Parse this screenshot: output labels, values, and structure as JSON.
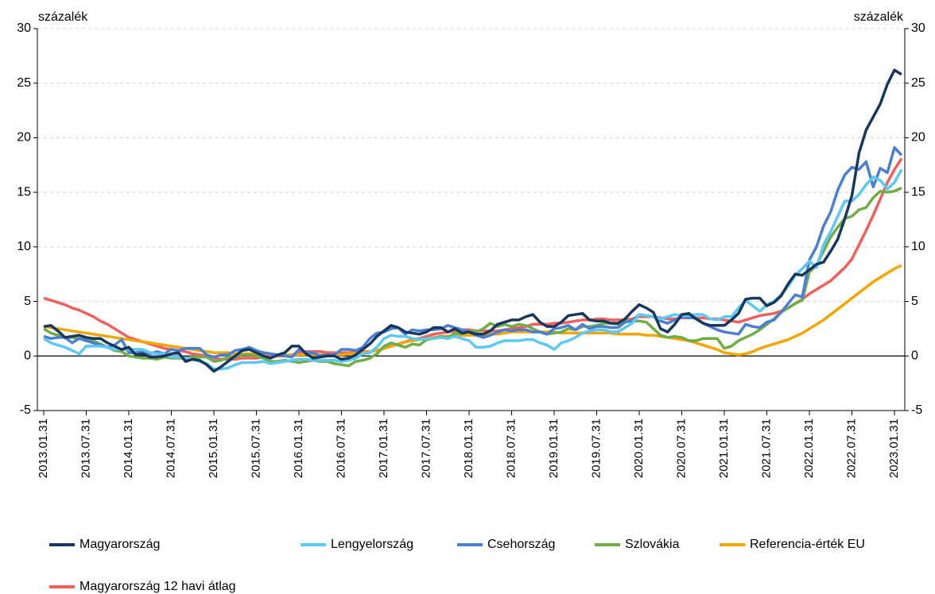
{
  "chart_data": {
    "type": "line",
    "y_label": "százalék",
    "y2_label": "százalék",
    "categories": [
      "2013.01.31",
      null,
      null,
      null,
      null,
      null,
      "2013.07.31",
      null,
      null,
      null,
      null,
      null,
      "2014.01.31",
      null,
      null,
      null,
      null,
      null,
      "2014.07.31",
      null,
      null,
      null,
      null,
      null,
      "2015.01.31",
      null,
      null,
      null,
      null,
      null,
      "2015.07.31",
      null,
      null,
      null,
      null,
      null,
      "2016.01.31",
      null,
      null,
      null,
      null,
      null,
      "2016.07.31",
      null,
      null,
      null,
      null,
      null,
      "2017.01.31",
      null,
      null,
      null,
      null,
      null,
      "2017.07.31",
      null,
      null,
      null,
      null,
      null,
      "2018.01.31",
      null,
      null,
      null,
      null,
      null,
      "2018.07.31",
      null,
      null,
      null,
      null,
      null,
      "2019.01.31",
      null,
      null,
      null,
      null,
      null,
      "2019.07.31",
      null,
      null,
      null,
      null,
      null,
      "2020.01.31",
      null,
      null,
      null,
      null,
      null,
      "2020.07.31",
      null,
      null,
      null,
      null,
      null,
      "2021.01.31",
      null,
      null,
      null,
      null,
      null,
      "2021.07.31",
      null,
      null,
      null,
      null,
      null,
      "2022.01.31",
      null,
      null,
      null,
      null,
      null,
      "2022.07.31",
      null,
      null,
      null,
      null,
      null,
      "2023.01.31",
      null
    ],
    "series": [
      {
        "name": "Magyarország",
        "color": "#17375e",
        "values": [
          2.7,
          2.8,
          2.3,
          1.7,
          1.8,
          1.9,
          1.7,
          1.6,
          1.6,
          1.2,
          0.9,
          0.6,
          0.8,
          0.1,
          0.2,
          -0.1,
          -0.1,
          0.0,
          0.2,
          0.3,
          -0.5,
          -0.3,
          -0.4,
          -0.8,
          -1.4,
          -1.0,
          -0.5,
          0.0,
          0.5,
          0.6,
          0.3,
          0.0,
          -0.2,
          0.1,
          0.3,
          0.9,
          0.9,
          0.2,
          -0.2,
          -0.1,
          0.0,
          0.0,
          -0.3,
          -0.2,
          0.1,
          0.6,
          1.1,
          1.8,
          2.3,
          2.8,
          2.6,
          2.2,
          2.1,
          2.0,
          2.2,
          2.6,
          2.6,
          2.2,
          2.5,
          2.1,
          2.2,
          2.0,
          2.0,
          2.3,
          2.9,
          3.1,
          3.3,
          3.3,
          3.6,
          3.8,
          3.1,
          2.7,
          2.7,
          3.1,
          3.7,
          3.8,
          3.9,
          3.3,
          3.2,
          3.2,
          3.0,
          3.0,
          3.4,
          4.1,
          4.7,
          4.4,
          4.0,
          2.5,
          2.2,
          2.9,
          3.8,
          3.9,
          3.4,
          3.0,
          2.8,
          2.8,
          2.8,
          3.3,
          3.9,
          5.2,
          5.3,
          5.3,
          4.6,
          4.9,
          5.5,
          6.6,
          7.5,
          7.4,
          7.9,
          8.4,
          8.6,
          9.6,
          10.7,
          12.6,
          14.7,
          18.6,
          20.7,
          21.9,
          23.1,
          24.9,
          26.2,
          25.8
        ]
      },
      {
        "name": "Lengyelország",
        "color": "#5bc8f5",
        "values": [
          1.6,
          1.2,
          1.0,
          0.8,
          0.5,
          0.2,
          0.9,
          0.9,
          0.9,
          0.8,
          0.6,
          0.6,
          0.6,
          0.6,
          0.6,
          0.3,
          0.2,
          0.2,
          -0.1,
          -0.1,
          -0.2,
          -0.3,
          -0.5,
          -0.7,
          -1.2,
          -1.2,
          -1.1,
          -0.8,
          -0.6,
          -0.6,
          -0.6,
          -0.5,
          -0.7,
          -0.6,
          -0.5,
          -0.4,
          -0.3,
          -0.3,
          -0.4,
          -0.4,
          -0.4,
          -0.4,
          -0.5,
          -0.4,
          -0.2,
          0.2,
          0.3,
          0.8,
          1.6,
          1.9,
          1.8,
          1.8,
          1.6,
          1.5,
          1.6,
          1.6,
          1.7,
          1.6,
          1.8,
          1.6,
          1.4,
          0.8,
          0.8,
          0.9,
          1.2,
          1.4,
          1.4,
          1.4,
          1.5,
          1.5,
          1.2,
          1.0,
          0.6,
          1.2,
          1.4,
          1.7,
          2.1,
          2.3,
          2.4,
          2.4,
          2.2,
          2.2,
          2.6,
          3.0,
          3.8,
          3.7,
          3.6,
          3.4,
          3.6,
          3.8,
          3.7,
          3.7,
          3.8,
          3.8,
          3.4,
          3.3,
          3.6,
          3.6,
          4.4,
          5.1,
          4.6,
          4.1,
          4.7,
          5.0,
          5.6,
          6.4,
          7.4,
          8.0,
          8.7,
          8.1,
          10.2,
          11.4,
          12.8,
          14.2,
          14.2,
          14.8,
          15.7,
          16.4,
          16.1,
          15.3,
          15.9,
          17.1
        ]
      },
      {
        "name": "Csehország",
        "color": "#4a7fd4",
        "values": [
          1.8,
          1.6,
          1.7,
          1.7,
          1.2,
          1.6,
          1.4,
          1.2,
          1.0,
          0.8,
          1.0,
          1.5,
          0.3,
          0.3,
          0.4,
          0.2,
          0.4,
          0.2,
          0.6,
          0.5,
          0.7,
          0.7,
          0.7,
          0.1,
          -0.1,
          0.1,
          0.1,
          0.5,
          0.6,
          0.8,
          0.5,
          0.3,
          0.2,
          0.1,
          0.0,
          -0.1,
          0.6,
          0.3,
          0.3,
          0.0,
          0.1,
          0.1,
          0.6,
          0.6,
          0.5,
          0.8,
          1.6,
          2.1,
          2.2,
          2.5,
          2.6,
          2.0,
          2.4,
          2.3,
          2.4,
          2.4,
          2.5,
          2.8,
          2.6,
          2.4,
          2.2,
          1.9,
          1.7,
          1.9,
          2.2,
          2.4,
          2.3,
          2.4,
          2.4,
          2.2,
          2.2,
          2.0,
          2.5,
          2.6,
          2.8,
          2.4,
          2.9,
          2.5,
          2.7,
          2.7,
          2.6,
          2.6,
          3.1,
          3.2,
          3.8,
          3.7,
          3.6,
          3.2,
          3.0,
          3.3,
          3.6,
          3.5,
          3.5,
          3.0,
          2.7,
          2.4,
          2.2,
          2.1,
          2.0,
          2.9,
          2.7,
          2.6,
          3.1,
          3.3,
          4.0,
          4.8,
          5.6,
          5.4,
          8.8,
          10.0,
          11.9,
          13.2,
          15.2,
          16.6,
          17.3,
          17.1,
          17.8,
          15.5,
          17.2,
          16.8,
          19.1,
          18.4
        ]
      },
      {
        "name": "Szlovákia",
        "color": "#70ad47",
        "values": [
          2.5,
          2.1,
          1.9,
          1.7,
          1.7,
          1.6,
          1.5,
          1.4,
          1.1,
          0.8,
          0.5,
          0.4,
          0.0,
          -0.1,
          -0.2,
          -0.2,
          -0.3,
          -0.1,
          -0.2,
          -0.2,
          -0.2,
          -0.1,
          -0.1,
          -0.1,
          -0.5,
          -0.4,
          -0.1,
          -0.1,
          0.1,
          0.1,
          0.0,
          -0.2,
          -0.5,
          -0.5,
          -0.4,
          -0.5,
          -0.6,
          -0.5,
          -0.4,
          -0.5,
          -0.5,
          -0.7,
          -0.8,
          -0.9,
          -0.5,
          -0.4,
          -0.2,
          0.2,
          0.9,
          1.2,
          1.0,
          0.8,
          1.1,
          1.0,
          1.5,
          1.6,
          1.8,
          1.7,
          2.1,
          2.0,
          2.3,
          2.2,
          2.5,
          3.0,
          2.7,
          2.9,
          2.7,
          2.9,
          2.8,
          2.5,
          2.2,
          2.0,
          2.1,
          2.2,
          2.5,
          2.4,
          2.7,
          2.7,
          2.8,
          3.0,
          3.0,
          2.9,
          3.2,
          3.2,
          3.2,
          3.1,
          2.5,
          1.9,
          1.7,
          1.8,
          1.7,
          1.4,
          1.4,
          1.6,
          1.6,
          1.6,
          0.7,
          0.9,
          1.4,
          1.7,
          2.0,
          2.4,
          2.9,
          3.4,
          4.0,
          4.4,
          4.8,
          5.1,
          7.7,
          8.3,
          9.6,
          10.9,
          11.8,
          12.6,
          12.8,
          13.4,
          13.6,
          14.5,
          15.1,
          15.0,
          15.1,
          15.4
        ]
      },
      {
        "name": "Referencia-érték EU",
        "color": "#f5a500",
        "values": [
          2.7,
          2.6,
          2.5,
          2.4,
          2.3,
          2.2,
          2.1,
          2.0,
          1.9,
          1.8,
          1.7,
          1.6,
          1.5,
          1.4,
          1.3,
          1.2,
          1.1,
          1.0,
          0.9,
          0.8,
          0.7,
          0.6,
          0.5,
          0.4,
          0.3,
          0.3,
          0.3,
          0.2,
          0.2,
          0.2,
          0.2,
          0.2,
          0.2,
          0.1,
          0.1,
          0.1,
          0.1,
          0.1,
          0.1,
          0.1,
          0.1,
          0.1,
          0.1,
          0.2,
          0.2,
          0.3,
          0.4,
          0.5,
          0.7,
          0.9,
          1.1,
          1.3,
          1.4,
          1.5,
          1.6,
          1.7,
          1.8,
          1.8,
          1.9,
          1.9,
          1.9,
          1.9,
          1.9,
          2.0,
          2.0,
          2.1,
          2.2,
          2.2,
          2.2,
          2.2,
          2.2,
          2.2,
          2.2,
          2.1,
          2.1,
          2.1,
          2.1,
          2.1,
          2.1,
          2.1,
          2.1,
          2.0,
          2.0,
          2.0,
          2.0,
          1.9,
          1.9,
          1.8,
          1.7,
          1.6,
          1.5,
          1.4,
          1.2,
          1.0,
          0.8,
          0.6,
          0.3,
          0.2,
          0.1,
          0.2,
          0.4,
          0.7,
          0.9,
          1.1,
          1.3,
          1.5,
          1.8,
          2.1,
          2.5,
          2.9,
          3.3,
          3.8,
          4.3,
          4.8,
          5.3,
          5.8,
          6.3,
          6.8,
          7.2,
          7.6,
          8.0,
          8.3
        ]
      },
      {
        "name": "Magyarország 12 havi átlag",
        "color": "#f25f5c",
        "values": [
          5.3,
          5.1,
          4.9,
          4.7,
          4.4,
          4.2,
          3.9,
          3.6,
          3.2,
          2.9,
          2.5,
          2.1,
          1.7,
          1.5,
          1.3,
          1.1,
          0.9,
          0.7,
          0.6,
          0.5,
          0.4,
          0.2,
          0.1,
          0.0,
          -0.2,
          -0.3,
          -0.3,
          -0.3,
          -0.2,
          -0.2,
          -0.2,
          -0.1,
          -0.1,
          0.0,
          0.0,
          0.1,
          0.3,
          0.4,
          0.4,
          0.4,
          0.3,
          0.3,
          0.3,
          0.3,
          0.3,
          0.4,
          0.4,
          0.5,
          0.7,
          0.9,
          1.1,
          1.3,
          1.5,
          1.6,
          1.8,
          2.0,
          2.1,
          2.2,
          2.3,
          2.4,
          2.4,
          2.3,
          2.3,
          2.3,
          2.3,
          2.4,
          2.5,
          2.6,
          2.7,
          2.9,
          2.9,
          2.9,
          3.0,
          3.0,
          3.1,
          3.2,
          3.3,
          3.3,
          3.4,
          3.4,
          3.3,
          3.3,
          3.3,
          3.4,
          3.6,
          3.6,
          3.6,
          3.5,
          3.4,
          3.4,
          3.5,
          3.5,
          3.5,
          3.5,
          3.4,
          3.4,
          3.3,
          3.2,
          3.1,
          3.3,
          3.5,
          3.7,
          3.8,
          3.9,
          4.1,
          4.4,
          4.8,
          5.2,
          5.7,
          6.1,
          6.5,
          6.9,
          7.5,
          8.1,
          8.9,
          10.2,
          11.5,
          12.9,
          14.4,
          15.9,
          17.1,
          18.1
        ]
      }
    ],
    "ylim": [
      -5,
      30
    ],
    "yticks": [
      -5,
      0,
      5,
      10,
      15,
      20,
      25,
      30
    ],
    "y2lim": [
      -5,
      30
    ],
    "y2ticks": [
      -5,
      0,
      5,
      10,
      15,
      20,
      25,
      30
    ],
    "grid": true
  }
}
